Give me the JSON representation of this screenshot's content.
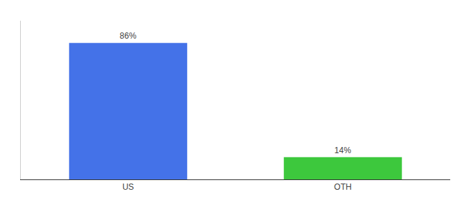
{
  "chart_data": {
    "type": "bar",
    "categories": [
      "US",
      "OTH"
    ],
    "values": [
      86,
      14
    ],
    "value_labels": [
      "86%",
      "14%"
    ],
    "colors": [
      "#4472e8",
      "#3dc83d"
    ],
    "ylim": [
      0,
      100
    ],
    "grid": false,
    "data_labels": true,
    "tick_labels": "x"
  }
}
